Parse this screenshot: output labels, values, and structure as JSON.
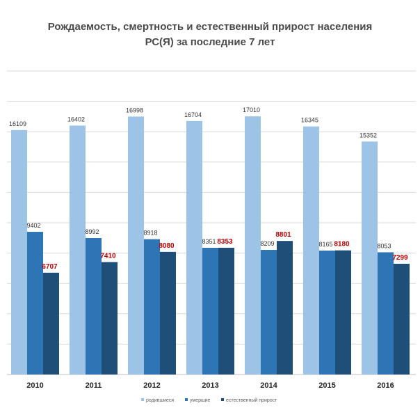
{
  "title_line1": "Рождаемость, смертность и естественный прирост населения",
  "title_line2": "РС(Я) за последние 7 лет",
  "chart_data": {
    "type": "bar",
    "title": "Рождаемость, смертность и естественный прирост населения РС(Я) за последние 7 лет",
    "categories": [
      "2010",
      "2011",
      "2012",
      "2013",
      "2014",
      "2015",
      "2016"
    ],
    "series": [
      {
        "name": "родившиеся",
        "values": [
          16109,
          16402,
          16998,
          16704,
          17010,
          16345,
          15352
        ],
        "color": "#9dc3e6",
        "label_color": "#333333"
      },
      {
        "name": "умершие",
        "values": [
          9402,
          8992,
          8918,
          8351,
          8209,
          8165,
          8053
        ],
        "color": "#2e75b6",
        "label_color": "#333333"
      },
      {
        "name": "естественный прирост",
        "values": [
          6707,
          7410,
          8080,
          8353,
          8801,
          8180,
          7299
        ],
        "color": "#1f4e79",
        "label_color": "#c00000"
      }
    ],
    "ylim": [
      0,
      20000
    ],
    "grid": true,
    "legend": "bottom"
  }
}
